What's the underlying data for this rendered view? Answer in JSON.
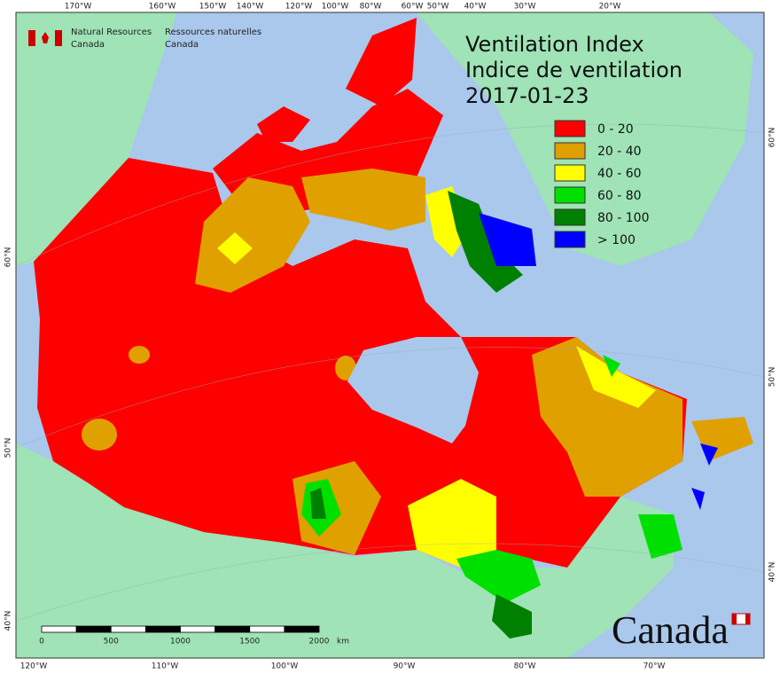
{
  "title": {
    "line1": "Ventilation Index",
    "line2": "Indice de ventilation",
    "date": "2017-01-23"
  },
  "header": {
    "english": [
      "Natural Resources",
      "Canada"
    ],
    "french": [
      "Ressources naturelles",
      "Canada"
    ]
  },
  "legend": [
    {
      "label": "0 - 20",
      "color": "#ff0000"
    },
    {
      "label": "20 - 40",
      "color": "#e0a000"
    },
    {
      "label": "40 - 60",
      "color": "#ffff00"
    },
    {
      "label": "60 - 80",
      "color": "#00e000"
    },
    {
      "label": "80 - 100",
      "color": "#008000"
    },
    {
      "label": "> 100",
      "color": "#0000ff"
    }
  ],
  "graticule": {
    "top": [
      "170°W",
      "160°W",
      "150°W",
      "140°W",
      "120°W",
      "100°W",
      "80°W",
      "60°W",
      "50°W",
      "40°W",
      "30°W",
      "20°W"
    ],
    "bottom": [
      "120°W",
      "110°W",
      "100°W",
      "90°W",
      "80°W",
      "70°W"
    ],
    "left": [
      "60°N",
      "50°N",
      "40°N"
    ],
    "right": [
      "60°N",
      "50°N",
      "40°N"
    ]
  },
  "scale_bar": {
    "ticks": [
      "0",
      "500",
      "1000",
      "1500",
      "2000"
    ],
    "unit": "km"
  },
  "wordmark": "Canada"
}
